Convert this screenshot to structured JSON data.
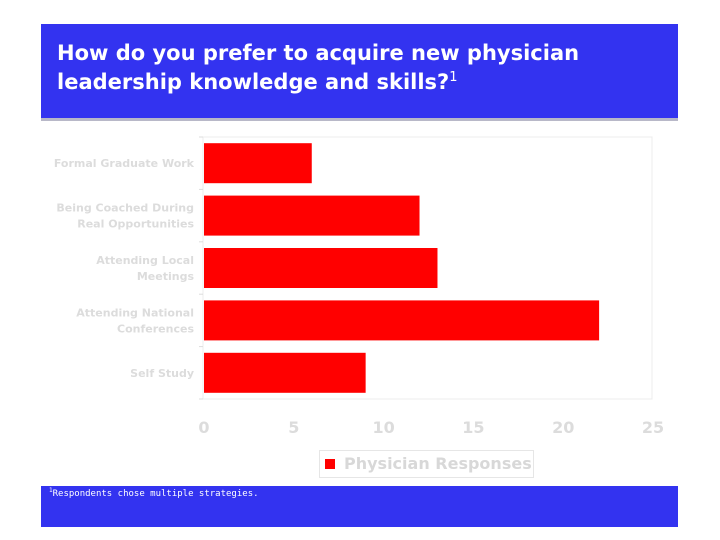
{
  "header": {
    "title": "How do you prefer to acquire new physician leadership knowledge and skills?",
    "footnote_mark": "1"
  },
  "footer": {
    "footnote_mark": "1",
    "note": "Respondents chose multiple strategies."
  },
  "colors": {
    "banner": "#3333f0",
    "bar": "#ff0000"
  },
  "chart_data": {
    "type": "bar",
    "orientation": "horizontal",
    "categories": [
      "Formal Graduate Work",
      "Being Coached During Real Opportunities",
      "Attending Local Meetings",
      "Attending National Conferences",
      "Self Study"
    ],
    "category_lines": [
      [
        "Formal Graduate Work"
      ],
      [
        "Being Coached During",
        "Real Opportunities"
      ],
      [
        "Attending Local",
        "Meetings"
      ],
      [
        "Attending National",
        "Conferences"
      ],
      [
        "Self Study"
      ]
    ],
    "series": [
      {
        "name": "Physician Responses",
        "values": [
          6,
          12,
          13,
          22,
          9
        ]
      }
    ],
    "xlim": [
      0,
      25
    ],
    "xticks": [
      "0",
      "5",
      "10",
      "15",
      "20",
      "25"
    ],
    "legend_position": "bottom",
    "grid": false
  }
}
